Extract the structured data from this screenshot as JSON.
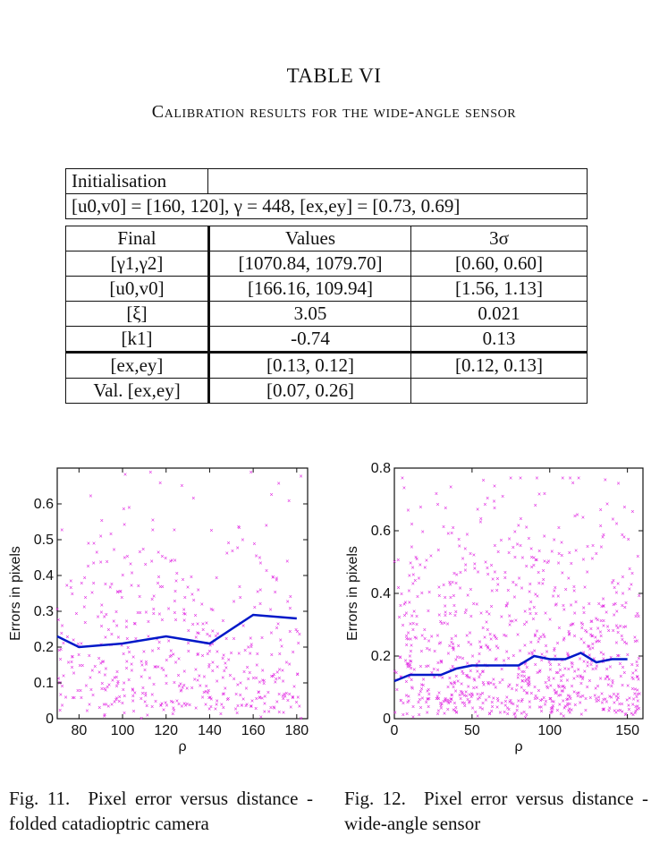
{
  "table": {
    "title": "TABLE VI",
    "subtitle": "Calibration results for the wide-angle sensor",
    "init_header": "Initialisation",
    "init_values": "[u0,v0] = [160, 120], γ = 448, [ex,ey] = [0.73, 0.69]",
    "columns": [
      "Final",
      "Values",
      "3σ"
    ],
    "rows": [
      [
        "[γ1,γ2]",
        "[1070.84, 1079.70]",
        "[0.60, 0.60]"
      ],
      [
        "[u0,v0]",
        "[166.16, 109.94]",
        "[1.56, 1.13]"
      ],
      [
        "[ξ]",
        "3.05",
        "0.021"
      ],
      [
        "[k1]",
        "-0.74",
        "0.13"
      ],
      [
        "[ex,ey]",
        "[0.13, 0.12]",
        "[0.12, 0.13]"
      ],
      [
        "Val. [ex,ey]",
        "[0.07, 0.26]",
        ""
      ]
    ]
  },
  "chart_data": [
    {
      "type": "scatter",
      "title": "",
      "xlabel": "ρ",
      "ylabel": "Errors in pixels",
      "xlim": [
        70,
        185
      ],
      "ylim": [
        0,
        0.7
      ],
      "xticks": [
        80,
        100,
        120,
        140,
        160,
        180
      ],
      "yticks": [
        0,
        0.1,
        0.2,
        0.3,
        0.4,
        0.5,
        0.6
      ],
      "scatter_color": "#e020e0",
      "line_color": "#0018c8",
      "line": {
        "x": [
          70,
          80,
          100,
          120,
          140,
          160,
          180
        ],
        "y": [
          0.23,
          0.2,
          0.21,
          0.23,
          0.21,
          0.29,
          0.28
        ]
      },
      "scatter_summary": {
        "n": 500,
        "x_range": [
          70,
          182
        ],
        "y_range": [
          0,
          0.69
        ]
      }
    },
    {
      "type": "scatter",
      "title": "",
      "xlabel": "ρ",
      "ylabel": "Errors in pixels",
      "xlim": [
        0,
        160
      ],
      "ylim": [
        0,
        0.8
      ],
      "xticks": [
        0,
        50,
        100,
        150
      ],
      "yticks": [
        0,
        0.2,
        0.4,
        0.6,
        0.8
      ],
      "scatter_color": "#e020e0",
      "line_color": "#0018c8",
      "line": {
        "x": [
          0,
          10,
          20,
          30,
          40,
          50,
          60,
          70,
          80,
          90,
          100,
          110,
          120,
          130,
          140,
          150
        ],
        "y": [
          0.12,
          0.14,
          0.14,
          0.14,
          0.16,
          0.17,
          0.17,
          0.17,
          0.17,
          0.2,
          0.19,
          0.19,
          0.21,
          0.18,
          0.19,
          0.19
        ]
      },
      "scatter_summary": {
        "n": 900,
        "x_range": [
          0,
          158
        ],
        "y_range": [
          0,
          0.77
        ]
      }
    }
  ],
  "captions": [
    {
      "label": "Fig. 11.",
      "text": "Pixel error versus distance - folded catadioptric camera"
    },
    {
      "label": "Fig. 12.",
      "text": "Pixel error versus distance - wide-angle sensor"
    }
  ]
}
